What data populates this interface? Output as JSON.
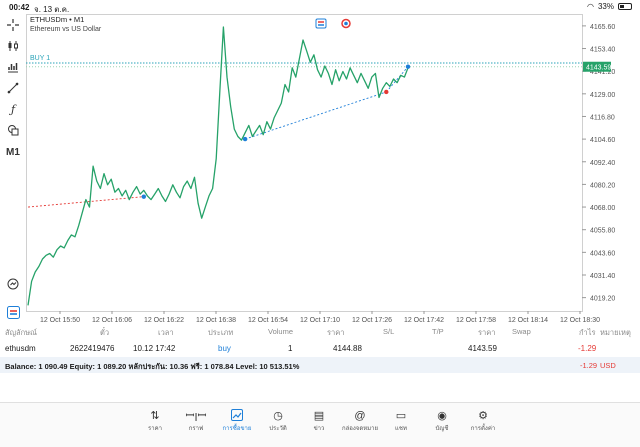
{
  "status_bar": {
    "time": "00:42",
    "date": "จ. 13 ต.ค.",
    "battery": "33%",
    "battery_level": 0.33
  },
  "toolbar": {
    "items": [
      {
        "icon": "crosshair-icon"
      },
      {
        "icon": "candles-icon"
      },
      {
        "icon": "indicators-icon"
      },
      {
        "icon": "objects-icon"
      },
      {
        "icon": "function-icon"
      },
      {
        "icon": "shapes-icon"
      },
      {
        "icon": "timeframe-label",
        "label": "M1"
      },
      {
        "icon": "zoom-icon"
      },
      {
        "icon": "broker-logo-icon"
      }
    ]
  },
  "chart": {
    "symbol_line": "ETHUSDm • M1",
    "symbol_desc": "Ethereum vs US Dollar",
    "buy_label": "BUY 1",
    "current_price_label": "4143.59",
    "colors": {
      "line": "#26a269",
      "buy_marker": "#1e7fd8",
      "sell_marker": "#e53935",
      "current_price_bg": "#26a269"
    }
  },
  "chart_data": {
    "type": "line",
    "yticks": [
      "4165.60",
      "4153.40",
      "4141.20",
      "4129.00",
      "4116.80",
      "4104.60",
      "4092.40",
      "4080.20",
      "4068.00",
      "4055.80",
      "4043.60",
      "4031.40",
      "4019.20"
    ],
    "ylim": [
      4012.0,
      4172.0
    ],
    "xticks": [
      "12 Oct 15:50",
      "12 Oct 16:06",
      "12 Oct 16:22",
      "12 Oct 16:38",
      "12 Oct 16:54",
      "12 Oct 17:10",
      "12 Oct 17:26",
      "12 Oct 17:42",
      "12 Oct 17:58",
      "12 Oct 18:14",
      "12 Oct 18:30"
    ],
    "series": [
      {
        "values": [
          4015,
          4028,
          4033,
          4036,
          4040,
          4042,
          4043,
          4041,
          4045,
          4047,
          4046,
          4050,
          4053,
          4052,
          4058,
          4065,
          4072,
          4068,
          4090,
          4082,
          4078,
          4086,
          4080,
          4083,
          4076,
          4078,
          4074,
          4077,
          4072,
          4076,
          4079,
          4075,
          4077,
          4074,
          4072,
          4075,
          4078,
          4074,
          4071,
          4075,
          4080,
          4076,
          4073,
          4079,
          4082,
          4078,
          4084,
          4070,
          4062,
          4068,
          4074,
          4078,
          4094,
          4130,
          4165,
          4138,
          4122,
          4110,
          4106,
          4104,
          4108,
          4112,
          4106,
          4109,
          4112,
          4107,
          4114,
          4110,
          4116,
          4120,
          4124,
          4134,
          4130,
          4143,
          4138,
          4148,
          4158,
          4152,
          4146,
          4150,
          4142,
          4138,
          4144,
          4140,
          4134,
          4142,
          4136,
          4141,
          4137,
          4143,
          4139,
          4135,
          4140,
          4136,
          4132,
          4138,
          4140,
          4127,
          4132,
          4135,
          4133,
          4137,
          4135,
          4139,
          4138,
          4143
        ]
      }
    ],
    "trade_lines": [
      {
        "from_index": 0,
        "from_price": 4068.0,
        "to_index": 32,
        "to_price": 4073.6,
        "color": "#e53935"
      },
      {
        "from_index": 60,
        "from_price": 4104.6,
        "to_index": 99,
        "to_price": 4130.0,
        "color": "#1e7fd8"
      },
      {
        "from_index": 99,
        "from_price": 4130.0,
        "to_index": 105,
        "to_price": 4143.6,
        "color": "#1e7fd8"
      }
    ],
    "markers": [
      {
        "index": 32,
        "price": 4073.6,
        "color": "#1e7fd8"
      },
      {
        "index": 60,
        "price": 4104.6,
        "color": "#1e7fd8"
      },
      {
        "index": 99,
        "price": 4130.0,
        "color": "#e53935"
      },
      {
        "index": 105,
        "price": 4143.6,
        "color": "#1e7fd8"
      }
    ],
    "buy_line_price": 4145.6,
    "current_price": 4143.59
  },
  "table": {
    "headers": [
      "สัญลักษณ์",
      "ตั๋ว",
      "เวลา",
      "ประเภท",
      "Volume",
      "ราคา",
      "S/L",
      "T/P",
      "ราคา",
      "Swap",
      "กำไร",
      "หมายเหตุ"
    ],
    "row": {
      "symbol": "ethusdm",
      "ticket": "2622419476",
      "time": "10.12 17:42",
      "type": "buy",
      "volume": "1",
      "price": "4144.88",
      "current": "4143.59",
      "profit": "-1.29"
    },
    "balance": "Balance: 1 090.49 Equity: 1 089.20 หลักประกัน: 10.36 ฟรี: 1 078.84 Level: 10 513.51%",
    "balance_profit": "-1.29",
    "currency": "USD"
  },
  "tabs": [
    {
      "icon": "quotes-icon",
      "label": "ราคา"
    },
    {
      "icon": "chart-icon",
      "label": "กราฟ"
    },
    {
      "icon": "trade-icon",
      "label": "การซื้อขาย",
      "active": true
    },
    {
      "icon": "history-icon",
      "label": "ประวัติ"
    },
    {
      "icon": "news-icon",
      "label": "ข่าว"
    },
    {
      "icon": "mailbox-icon",
      "label": "กล่องจดหมาย"
    },
    {
      "icon": "chat-icon",
      "label": "แชท"
    },
    {
      "icon": "accounts-icon",
      "label": "บัญชี"
    },
    {
      "icon": "settings-icon",
      "label": "การตั้งค่า"
    }
  ]
}
